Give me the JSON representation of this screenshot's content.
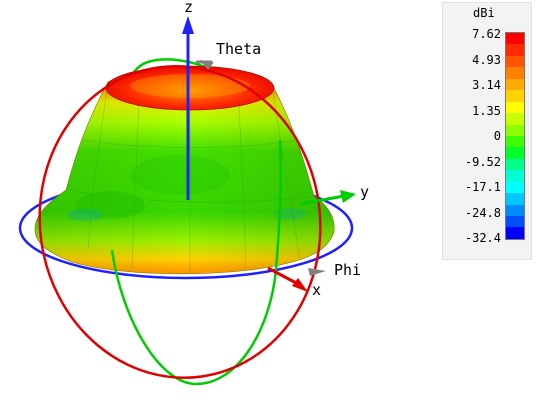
{
  "axes": {
    "x_label": "x",
    "y_label": "y",
    "z_label": "z",
    "theta_label": "Theta",
    "phi_label": "Phi"
  },
  "legend": {
    "unit": "dBi",
    "ticks": [
      "7.62",
      "4.93",
      "3.14",
      "1.35",
      "0",
      "-9.52",
      "-17.1",
      "-24.8",
      "-32.4"
    ],
    "colors": [
      "#ff0000",
      "#ff2a00",
      "#ff5500",
      "#ff8000",
      "#ffaa00",
      "#ffd400",
      "#ffff00",
      "#c8ff00",
      "#8cff00",
      "#3cff00",
      "#00ff28",
      "#00ff8c",
      "#00ffd2",
      "#00ffff",
      "#00c8ff",
      "#008cff",
      "#0050ff",
      "#0000ff"
    ]
  },
  "colors": {
    "theta_ring": "#e00000",
    "phi_ring": "#2020ff",
    "green_ring": "#00cc00",
    "x_arrow": "#e00000",
    "y_arrow": "#00cc00",
    "z_arrow": "#2020ff",
    "marker": "#808080"
  }
}
